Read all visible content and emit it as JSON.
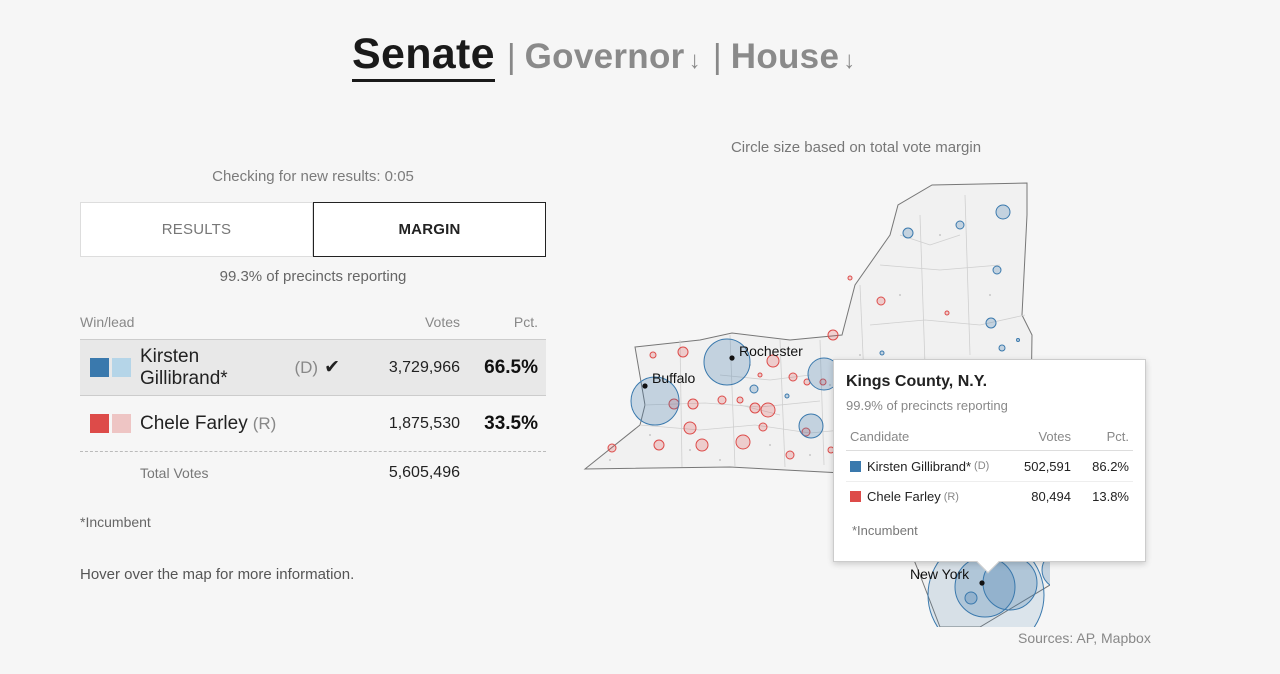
{
  "nav": {
    "active": "Senate",
    "separator": "|",
    "links": [
      {
        "label": "Governor",
        "arrow": "↓"
      },
      {
        "label": "House",
        "arrow": "↓"
      }
    ]
  },
  "checking": "Checking for new results: 0:05",
  "toggle": {
    "results": "RESULTS",
    "margin": "MARGIN"
  },
  "reporting": "99.3% of precincts reporting",
  "table": {
    "headers": {
      "name": "Win/lead",
      "votes": "Votes",
      "pct": "Pct."
    },
    "candidates": [
      {
        "name": "Kirsten Gillibrand*",
        "party": "(D)",
        "votes": "3,729,966",
        "pct": "66.5%",
        "winner_mark": "✔",
        "color": "#3a79ad",
        "light": "#b5d5e8"
      },
      {
        "name": "Chele Farley",
        "party": "(R)",
        "votes": "1,875,530",
        "pct": "33.5%",
        "color": "#dd4b49",
        "light": "#eec5c4"
      }
    ],
    "total_label": "Total Votes",
    "total_votes": "5,605,496"
  },
  "incumbent_note": "*Incumbent",
  "hover_note": "Hover over the map for more information.",
  "map": {
    "caption": "Circle size based on total vote margin",
    "cities": [
      "Rochester",
      "Buffalo",
      "New York"
    ],
    "sources": "Sources: AP, Mapbox"
  },
  "tooltip": {
    "title": "Kings County, N.Y.",
    "reporting": "99.9% of precincts reporting",
    "headers": {
      "candidate": "Candidate",
      "votes": "Votes",
      "pct": "Pct."
    },
    "rows": [
      {
        "name": "Kirsten Gillibrand*",
        "party": "(D)",
        "votes": "502,591",
        "pct": "86.2%",
        "color": "#3a79ad"
      },
      {
        "name": "Chele Farley",
        "party": "(R)",
        "votes": "80,494",
        "pct": "13.8%",
        "color": "#dd4b49"
      }
    ],
    "incumbent": "*Incumbent"
  }
}
